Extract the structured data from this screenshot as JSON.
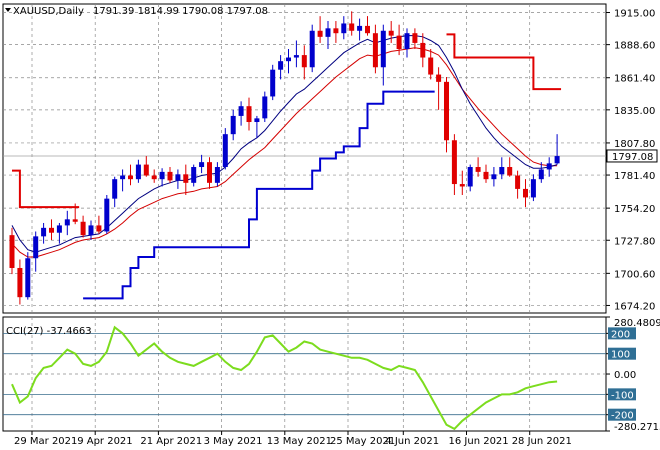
{
  "chart_data": {
    "type": "candlestick",
    "symbol": "XAUUSD,Daily",
    "ohlc_header": "1791.39 1814.99 1790.08 1797.08",
    "current_price_label": "1797.08",
    "price_ticks": [
      "1915.00",
      "1888.60",
      "1861.40",
      "1835.00",
      "1807.80",
      "1781.40",
      "1754.20",
      "1727.80",
      "1700.60",
      "1674.20"
    ],
    "price_ylim": [
      1668,
      1922
    ],
    "date_ticks": [
      "29 Mar 2021",
      "9 Apr 2021",
      "21 Apr 2021",
      "3 May 2021",
      "13 May 2021",
      "25 May 2021",
      "4 Jun 2021",
      "16 Jun 2021",
      "28 Jun 2021"
    ],
    "candles": [
      [
        1732,
        1738,
        1700,
        1705
      ],
      [
        1705,
        1712,
        1675,
        1681
      ],
      [
        1681,
        1718,
        1679,
        1713
      ],
      [
        1713,
        1735,
        1702,
        1731
      ],
      [
        1731,
        1742,
        1725,
        1738
      ],
      [
        1738,
        1745,
        1728,
        1734
      ],
      [
        1734,
        1742,
        1725,
        1740
      ],
      [
        1740,
        1752,
        1732,
        1745
      ],
      [
        1745,
        1758,
        1741,
        1743
      ],
      [
        1743,
        1748,
        1730,
        1732
      ],
      [
        1732,
        1744,
        1728,
        1740
      ],
      [
        1740,
        1748,
        1733,
        1735
      ],
      [
        1735,
        1765,
        1733,
        1762
      ],
      [
        1762,
        1780,
        1755,
        1778
      ],
      [
        1778,
        1786,
        1768,
        1781
      ],
      [
        1781,
        1790,
        1773,
        1778
      ],
      [
        1778,
        1794,
        1775,
        1790
      ],
      [
        1790,
        1797,
        1780,
        1781
      ],
      [
        1781,
        1786,
        1775,
        1778
      ],
      [
        1778,
        1787,
        1772,
        1784
      ],
      [
        1784,
        1788,
        1775,
        1777
      ],
      [
        1777,
        1786,
        1770,
        1782
      ],
      [
        1782,
        1790,
        1765,
        1775
      ],
      [
        1775,
        1790,
        1772,
        1788
      ],
      [
        1788,
        1798,
        1783,
        1792
      ],
      [
        1792,
        1796,
        1770,
        1775
      ],
      [
        1775,
        1792,
        1772,
        1788
      ],
      [
        1788,
        1820,
        1786,
        1815
      ],
      [
        1815,
        1835,
        1810,
        1830
      ],
      [
        1830,
        1842,
        1822,
        1838
      ],
      [
        1838,
        1845,
        1818,
        1825
      ],
      [
        1825,
        1830,
        1812,
        1828
      ],
      [
        1828,
        1850,
        1825,
        1846
      ],
      [
        1846,
        1872,
        1843,
        1868
      ],
      [
        1868,
        1880,
        1860,
        1875
      ],
      [
        1875,
        1885,
        1865,
        1878
      ],
      [
        1878,
        1892,
        1870,
        1880
      ],
      [
        1880,
        1888,
        1860,
        1870
      ],
      [
        1870,
        1905,
        1866,
        1900
      ],
      [
        1900,
        1912,
        1890,
        1895
      ],
      [
        1895,
        1908,
        1885,
        1902
      ],
      [
        1902,
        1908,
        1890,
        1898
      ],
      [
        1898,
        1912,
        1893,
        1906
      ],
      [
        1906,
        1916,
        1896,
        1900
      ],
      [
        1900,
        1910,
        1892,
        1904
      ],
      [
        1904,
        1912,
        1896,
        1898
      ],
      [
        1898,
        1905,
        1865,
        1870
      ],
      [
        1870,
        1905,
        1855,
        1900
      ],
      [
        1900,
        1908,
        1890,
        1896
      ],
      [
        1896,
        1905,
        1880,
        1885
      ],
      [
        1885,
        1902,
        1878,
        1898
      ],
      [
        1898,
        1902,
        1885,
        1890
      ],
      [
        1890,
        1898,
        1870,
        1878
      ],
      [
        1878,
        1885,
        1860,
        1864
      ],
      [
        1864,
        1870,
        1835,
        1858
      ],
      [
        1858,
        1862,
        1800,
        1810
      ],
      [
        1810,
        1815,
        1765,
        1774
      ],
      [
        1774,
        1785,
        1765,
        1772
      ],
      [
        1772,
        1790,
        1768,
        1788
      ],
      [
        1788,
        1796,
        1780,
        1784
      ],
      [
        1784,
        1790,
        1775,
        1778
      ],
      [
        1778,
        1788,
        1772,
        1782
      ],
      [
        1782,
        1796,
        1778,
        1788
      ],
      [
        1788,
        1796,
        1780,
        1781
      ],
      [
        1781,
        1785,
        1762,
        1770
      ],
      [
        1770,
        1778,
        1755,
        1763
      ],
      [
        1763,
        1782,
        1760,
        1778
      ],
      [
        1778,
        1792,
        1775,
        1786
      ],
      [
        1786,
        1796,
        1780,
        1791
      ],
      [
        1791,
        1815,
        1790,
        1797
      ]
    ],
    "ma_black": [
      1740,
      1728,
      1720,
      1718,
      1720,
      1722,
      1724,
      1727,
      1730,
      1731,
      1732,
      1733,
      1738,
      1744,
      1750,
      1756,
      1762,
      1766,
      1770,
      1773,
      1775,
      1777,
      1777,
      1779,
      1781,
      1782,
      1783,
      1788,
      1795,
      1803,
      1808,
      1812,
      1818,
      1826,
      1834,
      1841,
      1848,
      1852,
      1858,
      1864,
      1870,
      1876,
      1882,
      1886,
      1890,
      1893,
      1890,
      1892,
      1894,
      1895,
      1896,
      1896,
      1895,
      1892,
      1888,
      1878,
      1866,
      1852,
      1840,
      1830,
      1820,
      1812,
      1805,
      1800,
      1795,
      1790,
      1787,
      1787,
      1788,
      1790
    ],
    "ma_red": [
      1725,
      1718,
      1714,
      1714,
      1716,
      1718,
      1720,
      1723,
      1726,
      1728,
      1729,
      1730,
      1733,
      1737,
      1742,
      1748,
      1753,
      1756,
      1759,
      1762,
      1764,
      1766,
      1767,
      1768,
      1770,
      1771,
      1772,
      1776,
      1782,
      1788,
      1794,
      1799,
      1804,
      1811,
      1818,
      1825,
      1832,
      1838,
      1844,
      1850,
      1856,
      1862,
      1867,
      1872,
      1877,
      1880,
      1879,
      1881,
      1883,
      1884,
      1885,
      1886,
      1885,
      1883,
      1880,
      1872,
      1862,
      1852,
      1844,
      1836,
      1829,
      1822,
      1815,
      1809,
      1803,
      1797,
      1792,
      1790,
      1789,
      1789
    ],
    "stop_red": [
      {
        "from": 0,
        "to": 8,
        "values": [
          1785,
          1755,
          1755,
          1755,
          1755,
          1755,
          1755,
          1755,
          1755
        ]
      },
      {
        "from": 55,
        "to": 69,
        "values": [
          1897,
          1878,
          1878,
          1878,
          1878,
          1878,
          1878,
          1878,
          1878,
          1878,
          1878,
          1852,
          1852,
          1852,
          1852
        ]
      }
    ],
    "stop_blue": [
      {
        "from": 9,
        "to": 53,
        "values": [
          1680,
          1680,
          1680,
          1680,
          1680,
          1690,
          1705,
          1714,
          1714,
          1722,
          1722,
          1722,
          1722,
          1722,
          1722,
          1722,
          1722,
          1722,
          1722,
          1722,
          1722,
          1745,
          1770,
          1770,
          1770,
          1770,
          1770,
          1770,
          1770,
          1785,
          1795,
          1795,
          1800,
          1805,
          1805,
          1820,
          1840,
          1840,
          1850,
          1850,
          1850,
          1850,
          1850,
          1850,
          1850
        ]
      }
    ],
    "cci": {
      "label": "CCI(27) -37.4663",
      "ticks": [
        "280.4809",
        "200",
        "100",
        "0.00",
        "-100",
        "-200",
        "-280.2713"
      ],
      "ylim": [
        -280.2713,
        280.4809
      ],
      "values": [
        -50,
        -140,
        -110,
        -20,
        30,
        40,
        80,
        120,
        100,
        50,
        40,
        60,
        110,
        230,
        200,
        150,
        90,
        120,
        150,
        110,
        80,
        60,
        50,
        40,
        60,
        80,
        100,
        60,
        30,
        20,
        50,
        110,
        180,
        190,
        150,
        110,
        130,
        160,
        150,
        120,
        110,
        100,
        90,
        80,
        80,
        70,
        50,
        30,
        20,
        40,
        30,
        20,
        -40,
        -110,
        -180,
        -250,
        -270,
        -230,
        -200,
        -170,
        -140,
        -120,
        -100,
        -100,
        -90,
        -70,
        -60,
        -50,
        -40,
        -37
      ]
    }
  }
}
